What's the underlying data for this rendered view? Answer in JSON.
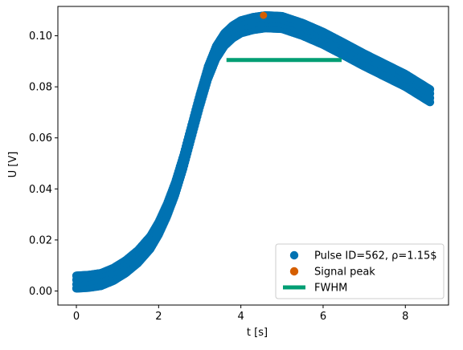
{
  "chart_data": {
    "type": "scatter",
    "xlabel": "t [s]",
    "ylabel": "U [V]",
    "xlim": [
      -0.45,
      9.05
    ],
    "ylim": [
      -0.0055,
      0.1115
    ],
    "xticks": [
      0,
      2,
      4,
      6,
      8
    ],
    "xtick_labels": [
      "0",
      "2",
      "4",
      "6",
      "8"
    ],
    "yticks": [
      0.0,
      0.02,
      0.04,
      0.06,
      0.08,
      0.1
    ],
    "ytick_labels": [
      "0.00",
      "0.02",
      "0.04",
      "0.06",
      "0.08",
      "0.10"
    ],
    "grid": false,
    "legend_position": "lower right",
    "series": [
      {
        "name": "Pulse ID=562, ρ=1.15$",
        "kind": "scatter",
        "color": "#0072B2",
        "band_halfwidth": 0.0025,
        "x": [
          0.0,
          0.3,
          0.6,
          0.9,
          1.2,
          1.5,
          1.8,
          2.0,
          2.2,
          2.4,
          2.6,
          2.8,
          3.0,
          3.2,
          3.4,
          3.6,
          3.8,
          4.0,
          4.3,
          4.6,
          5.0,
          5.5,
          6.0,
          6.5,
          7.0,
          7.5,
          8.0,
          8.3,
          8.6
        ],
        "y": [
          0.0035,
          0.0038,
          0.0045,
          0.0065,
          0.0095,
          0.0135,
          0.019,
          0.0245,
          0.0315,
          0.04,
          0.0505,
          0.0625,
          0.0745,
          0.0855,
          0.0935,
          0.0985,
          0.1015,
          0.1035,
          0.1048,
          0.1055,
          0.1052,
          0.1025,
          0.099,
          0.0948,
          0.0905,
          0.0865,
          0.0825,
          0.0795,
          0.0765
        ]
      },
      {
        "name": "Signal peak",
        "kind": "point",
        "color": "#D55E00",
        "x": [
          4.55
        ],
        "y": [
          0.108
        ]
      },
      {
        "name": "FWHM",
        "kind": "hline",
        "color": "#009E73",
        "x": [
          3.65,
          6.45
        ],
        "y": [
          0.0905,
          0.0905
        ]
      }
    ]
  }
}
